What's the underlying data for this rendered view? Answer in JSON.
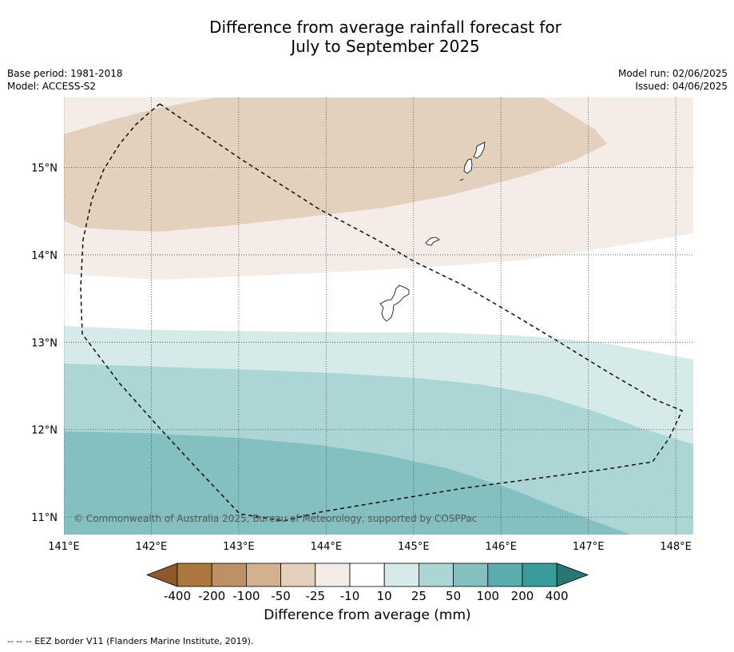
{
  "title_line1": "Difference from average rainfall forecast for",
  "title_line2": "July to September 2025",
  "meta": {
    "base_period": "Base period: 1981-2018",
    "model": "Model: ACCESS-S2",
    "model_run": "Model run: 02/06/2025",
    "issued": "Issued: 04/06/2025"
  },
  "map": {
    "lon_range": [
      141.0,
      148.2
    ],
    "lat_range": [
      10.8,
      15.8
    ],
    "lon_ticks": [
      141,
      142,
      143,
      144,
      145,
      146,
      147,
      148
    ],
    "lon_tick_labels": [
      "141°E",
      "142°E",
      "143°E",
      "144°E",
      "145°E",
      "146°E",
      "147°E",
      "148°E"
    ],
    "lat_ticks": [
      11,
      12,
      13,
      14,
      15
    ],
    "lat_tick_labels": [
      "11°N",
      "12°N",
      "13°N",
      "14°N",
      "15°N"
    ],
    "grid": "dotted",
    "copyright": "© Commonwealth of Australia 2025, Bureau of Meteorology, supported by COSPPac",
    "eez_border_style": "dashed"
  },
  "colorbar": {
    "label": "Difference from average (mm)",
    "tick_labels": [
      "-400",
      "-200",
      "-100",
      "-50",
      "-25",
      "-10",
      "10",
      "25",
      "50",
      "100",
      "200",
      "400"
    ],
    "colors": [
      "#8f5a2a",
      "#ae773d",
      "#be9066",
      "#d3b08f",
      "#e3d0bd",
      "#f4ece6",
      "#ffffff",
      "#d5eae9",
      "#acd6d5",
      "#84c0bf",
      "#5aadac",
      "#389a99",
      "#287574"
    ]
  },
  "footnote": "--  --  -- EEZ border V11 (Flanders Marine Institute, 2019)."
}
